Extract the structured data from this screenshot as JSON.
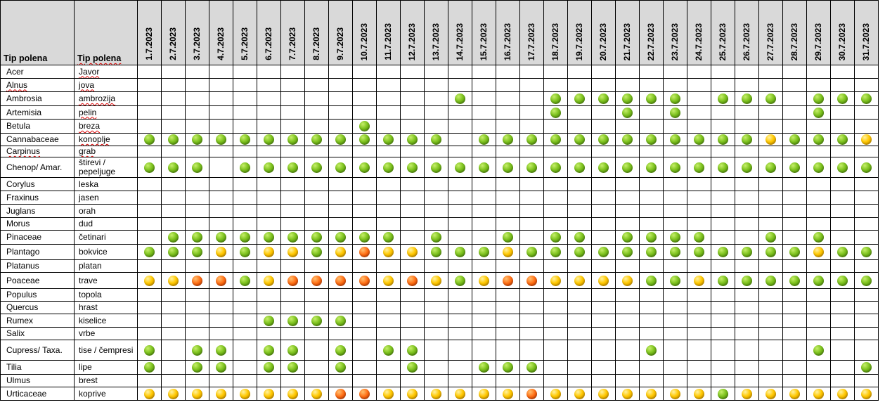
{
  "header": {
    "col1_label": "Tip polena",
    "col2_label": "Tip polena"
  },
  "dates": [
    "1.7.2023",
    "2.7.2023",
    "3.7.2023",
    "4.7.2023",
    "5.7.2023",
    "6.7.2023",
    "7.7.2023",
    "8.7.2023",
    "9.7.2023",
    "10.7.2023",
    "11.7.2023",
    "12.7.2023",
    "13.7.2023",
    "14.7.2023",
    "15.7.2023",
    "16.7.2023",
    "17.7.2023",
    "18.7.2023",
    "19.7.2023",
    "20.7.2023",
    "21.7.2023",
    "22.7.2023",
    "23.7.2023",
    "24.7.2023",
    "25.7.2023",
    "26.7.2023",
    "27.7.2023",
    "28.7.2023",
    "29.7.2023",
    "30.7.2023",
    "31.7.2023"
  ],
  "legend_levels": {
    "1": {
      "name": "green-dot",
      "color": "#7dc21e"
    },
    "2": {
      "name": "yellow-dot",
      "color": "#ffc800"
    },
    "3": {
      "name": "orange-dot",
      "color": "#ff6a10"
    }
  },
  "rows": [
    {
      "latin": "Acer",
      "local": "Javor",
      "levels": [
        0,
        0,
        0,
        0,
        0,
        0,
        0,
        0,
        0,
        0,
        0,
        0,
        0,
        0,
        0,
        0,
        0,
        0,
        0,
        0,
        0,
        0,
        0,
        0,
        0,
        0,
        0,
        0,
        0,
        0,
        0
      ]
    },
    {
      "latin": "Alnus",
      "local": "jova",
      "levels": [
        0,
        0,
        0,
        0,
        0,
        0,
        0,
        0,
        0,
        0,
        0,
        0,
        0,
        0,
        0,
        0,
        0,
        0,
        0,
        0,
        0,
        0,
        0,
        0,
        0,
        0,
        0,
        0,
        0,
        0,
        0
      ]
    },
    {
      "latin": "Ambrosia",
      "local": "ambrozija",
      "levels": [
        0,
        0,
        0,
        0,
        0,
        0,
        0,
        0,
        0,
        0,
        0,
        0,
        0,
        1,
        0,
        0,
        0,
        1,
        1,
        1,
        1,
        1,
        1,
        0,
        1,
        1,
        1,
        0,
        1,
        1,
        1
      ]
    },
    {
      "latin": "Artemisia",
      "local": "pelin",
      "levels": [
        0,
        0,
        0,
        0,
        0,
        0,
        0,
        0,
        0,
        0,
        0,
        0,
        0,
        0,
        0,
        0,
        0,
        1,
        0,
        0,
        1,
        0,
        1,
        0,
        0,
        0,
        0,
        0,
        1,
        0,
        0
      ]
    },
    {
      "latin": "Betula",
      "local": "breza",
      "levels": [
        0,
        0,
        0,
        0,
        0,
        0,
        0,
        0,
        0,
        1,
        0,
        0,
        0,
        0,
        0,
        0,
        0,
        0,
        0,
        0,
        0,
        0,
        0,
        0,
        0,
        0,
        0,
        0,
        0,
        0,
        0
      ]
    },
    {
      "latin": "Cannabaceae",
      "local": "konoplje",
      "levels": [
        1,
        1,
        1,
        1,
        1,
        1,
        1,
        1,
        1,
        1,
        1,
        1,
        1,
        0,
        1,
        1,
        1,
        1,
        1,
        1,
        1,
        1,
        1,
        1,
        1,
        1,
        2,
        1,
        1,
        1,
        2
      ]
    },
    {
      "latin": "Carpinus",
      "local": "grab",
      "levels": [
        0,
        0,
        0,
        0,
        0,
        0,
        0,
        0,
        0,
        0,
        0,
        0,
        0,
        0,
        0,
        0,
        0,
        0,
        0,
        0,
        0,
        0,
        0,
        0,
        0,
        0,
        0,
        0,
        0,
        0,
        0
      ]
    },
    {
      "latin": "Chenop/ Amar.",
      "local": "štirevi / pepeljuge",
      "levels": [
        1,
        1,
        1,
        0,
        1,
        1,
        1,
        1,
        1,
        1,
        1,
        1,
        1,
        1,
        1,
        1,
        1,
        1,
        1,
        1,
        1,
        1,
        1,
        1,
        1,
        1,
        1,
        1,
        1,
        1,
        1
      ]
    },
    {
      "latin": "Corylus",
      "local": "leska",
      "levels": [
        0,
        0,
        0,
        0,
        0,
        0,
        0,
        0,
        0,
        0,
        0,
        0,
        0,
        0,
        0,
        0,
        0,
        0,
        0,
        0,
        0,
        0,
        0,
        0,
        0,
        0,
        0,
        0,
        0,
        0,
        0
      ]
    },
    {
      "latin": "Fraxinus",
      "local": "jasen",
      "levels": [
        0,
        0,
        0,
        0,
        0,
        0,
        0,
        0,
        0,
        0,
        0,
        0,
        0,
        0,
        0,
        0,
        0,
        0,
        0,
        0,
        0,
        0,
        0,
        0,
        0,
        0,
        0,
        0,
        0,
        0,
        0
      ]
    },
    {
      "latin": "Juglans",
      "local": "orah",
      "levels": [
        0,
        0,
        0,
        0,
        0,
        0,
        0,
        0,
        0,
        0,
        0,
        0,
        0,
        0,
        0,
        0,
        0,
        0,
        0,
        0,
        0,
        0,
        0,
        0,
        0,
        0,
        0,
        0,
        0,
        0,
        0
      ]
    },
    {
      "latin": "Morus",
      "local": "dud",
      "levels": [
        0,
        0,
        0,
        0,
        0,
        0,
        0,
        0,
        0,
        0,
        0,
        0,
        0,
        0,
        0,
        0,
        0,
        0,
        0,
        0,
        0,
        0,
        0,
        0,
        0,
        0,
        0,
        0,
        0,
        0,
        0
      ]
    },
    {
      "latin": "Pinaceae",
      "local": "četinari",
      "levels": [
        0,
        1,
        1,
        1,
        1,
        1,
        1,
        1,
        1,
        1,
        1,
        0,
        1,
        0,
        0,
        1,
        0,
        1,
        1,
        0,
        1,
        1,
        1,
        1,
        0,
        0,
        1,
        0,
        1,
        0,
        0
      ]
    },
    {
      "latin": "Plantago",
      "local": "bokvice",
      "levels": [
        1,
        1,
        1,
        2,
        1,
        2,
        2,
        1,
        2,
        3,
        2,
        2,
        1,
        1,
        1,
        2,
        1,
        1,
        1,
        1,
        1,
        1,
        1,
        1,
        1,
        1,
        1,
        1,
        2,
        1,
        1
      ]
    },
    {
      "latin": "Platanus",
      "local": "platan",
      "levels": [
        0,
        0,
        0,
        0,
        0,
        0,
        0,
        0,
        0,
        0,
        0,
        0,
        0,
        0,
        0,
        0,
        0,
        0,
        0,
        0,
        0,
        0,
        0,
        0,
        0,
        0,
        0,
        0,
        0,
        0,
        0
      ]
    },
    {
      "latin": "Poaceae",
      "local": "trave",
      "levels": [
        2,
        2,
        3,
        3,
        1,
        2,
        3,
        3,
        3,
        3,
        2,
        3,
        2,
        1,
        2,
        3,
        3,
        2,
        2,
        2,
        2,
        1,
        1,
        2,
        1,
        1,
        1,
        1,
        1,
        1,
        1
      ]
    },
    {
      "latin": "Populus",
      "local": "topola",
      "levels": [
        0,
        0,
        0,
        0,
        0,
        0,
        0,
        0,
        0,
        0,
        0,
        0,
        0,
        0,
        0,
        0,
        0,
        0,
        0,
        0,
        0,
        0,
        0,
        0,
        0,
        0,
        0,
        0,
        0,
        0,
        0
      ]
    },
    {
      "latin": "Quercus",
      "local": "hrast",
      "levels": [
        0,
        0,
        0,
        0,
        0,
        0,
        0,
        0,
        0,
        0,
        0,
        0,
        0,
        0,
        0,
        0,
        0,
        0,
        0,
        0,
        0,
        0,
        0,
        0,
        0,
        0,
        0,
        0,
        0,
        0,
        0
      ]
    },
    {
      "latin": "Rumex",
      "local": "kiselice",
      "levels": [
        0,
        0,
        0,
        0,
        0,
        1,
        1,
        1,
        1,
        0,
        0,
        0,
        0,
        0,
        0,
        0,
        0,
        0,
        0,
        0,
        0,
        0,
        0,
        0,
        0,
        0,
        0,
        0,
        0,
        0,
        0
      ]
    },
    {
      "latin": "Salix",
      "local": "vrbe",
      "levels": [
        0,
        0,
        0,
        0,
        0,
        0,
        0,
        0,
        0,
        0,
        0,
        0,
        0,
        0,
        0,
        0,
        0,
        0,
        0,
        0,
        0,
        0,
        0,
        0,
        0,
        0,
        0,
        0,
        0,
        0,
        0
      ]
    },
    {
      "latin": "Cupress/ Taxa.",
      "local": "tise / čempresi",
      "levels": [
        1,
        0,
        1,
        1,
        0,
        1,
        1,
        0,
        1,
        0,
        1,
        1,
        0,
        0,
        0,
        0,
        0,
        0,
        0,
        0,
        0,
        1,
        0,
        0,
        0,
        0,
        0,
        0,
        1,
        0,
        0
      ]
    },
    {
      "latin": "Tilia",
      "local": "lipe",
      "levels": [
        1,
        0,
        1,
        1,
        0,
        1,
        1,
        0,
        1,
        0,
        0,
        1,
        0,
        0,
        1,
        1,
        1,
        0,
        0,
        0,
        0,
        0,
        0,
        0,
        0,
        0,
        0,
        0,
        0,
        0,
        1
      ]
    },
    {
      "latin": "Ulmus",
      "local": "brest",
      "levels": [
        0,
        0,
        0,
        0,
        0,
        0,
        0,
        0,
        0,
        0,
        0,
        0,
        0,
        0,
        0,
        0,
        0,
        0,
        0,
        0,
        0,
        0,
        0,
        0,
        0,
        0,
        0,
        0,
        0,
        0,
        0
      ]
    },
    {
      "latin": "Urticaceae",
      "local": "koprive",
      "levels": [
        2,
        2,
        2,
        2,
        2,
        2,
        2,
        2,
        3,
        3,
        2,
        2,
        2,
        2,
        2,
        2,
        3,
        2,
        2,
        2,
        2,
        2,
        2,
        2,
        1,
        2,
        2,
        2,
        2,
        2,
        2
      ]
    }
  ]
}
